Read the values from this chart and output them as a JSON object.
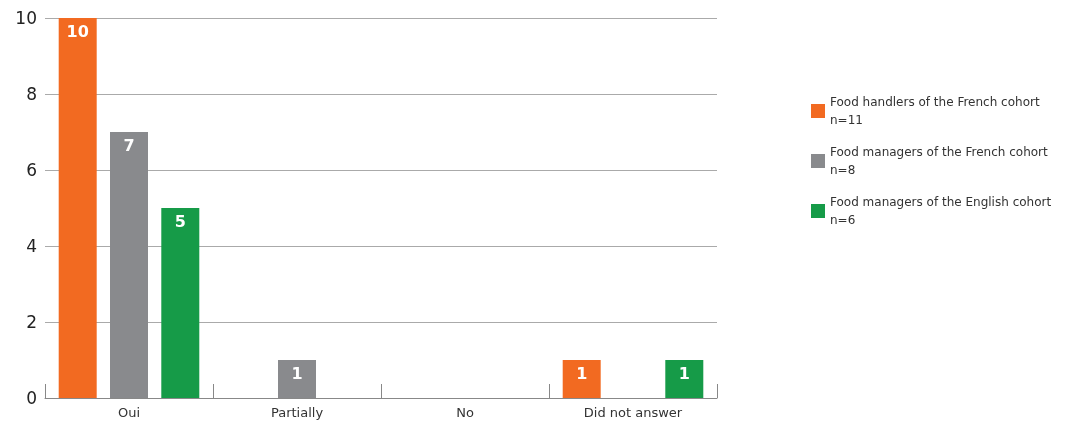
{
  "chart_data": {
    "type": "bar",
    "categories": [
      "Oui",
      "Partially",
      "No",
      "Did not answer"
    ],
    "series": [
      {
        "name": "Food handlers of the French cohort\nn=11",
        "color": "#f26a21",
        "values": [
          10,
          0,
          0,
          1
        ],
        "value_labels": [
          "10",
          null,
          null,
          "1"
        ]
      },
      {
        "name": "Food managers of the French cohort\nn=8",
        "color": "#898a8d",
        "values": [
          7,
          1,
          0,
          0
        ],
        "value_labels": [
          "7",
          "1",
          null,
          null
        ]
      },
      {
        "name": "Food managers of the English cohort\nn=6",
        "color": "#169b48",
        "values": [
          5,
          0,
          0,
          1
        ],
        "value_labels": [
          "5",
          null,
          null,
          "1"
        ]
      }
    ],
    "ylim": [
      0,
      10
    ],
    "yticks": [
      0,
      2,
      4,
      6,
      8,
      10
    ],
    "grid": "y",
    "legend": "right"
  }
}
